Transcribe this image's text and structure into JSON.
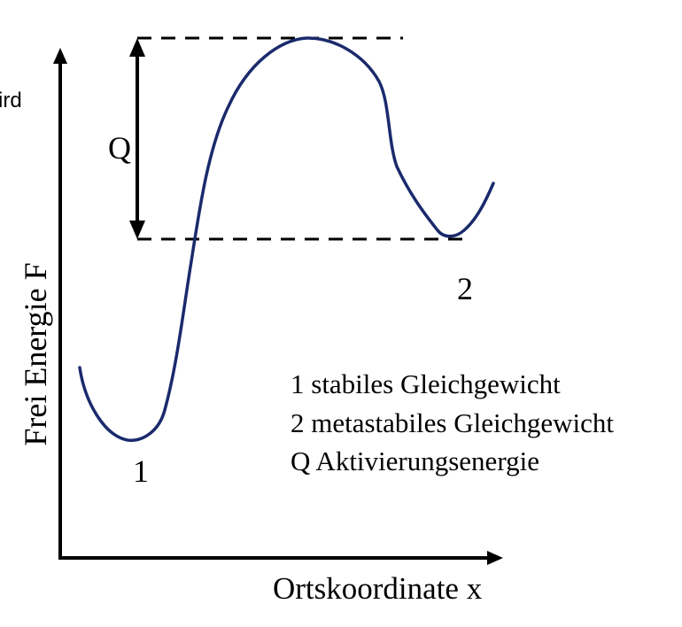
{
  "cut_text": "ird",
  "axes": {
    "y_label": "Frei Energie F",
    "x_label": "Ortskoordinate x"
  },
  "markers": {
    "q_label": "Q",
    "point_1": "1",
    "point_2": "2"
  },
  "legend": {
    "line_1": "1 stabiles Gleichgewicht",
    "line_2": "2 metastabiles Gleichgewicht",
    "line_3": "Q Aktivierungsenergie"
  },
  "colors": {
    "curve": "#1a2a6c",
    "axes": "#000000",
    "dashes": "#000000"
  }
}
